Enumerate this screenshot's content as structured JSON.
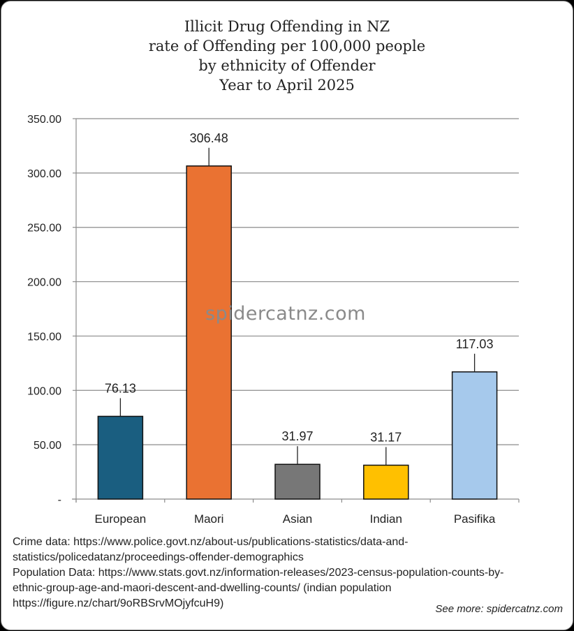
{
  "chart_data": {
    "type": "bar",
    "title": [
      "Illicit Drug Offending in NZ",
      "rate of Offending per 100,000 people",
      "by ethnicity of Offender",
      "Year to April 2025"
    ],
    "categories": [
      "European",
      "Maori",
      "Asian",
      "Indian",
      "Pasifika"
    ],
    "values": [
      76.13,
      306.48,
      31.97,
      31.17,
      117.03
    ],
    "value_labels": [
      "76.13",
      "306.48",
      "31.97",
      "31.17",
      "117.03"
    ],
    "bar_colors": [
      "#1a5e80",
      "#ea7232",
      "#777777",
      "#ffc000",
      "#a6c9ec"
    ],
    "ylim": [
      0,
      350
    ],
    "yticks": [
      0,
      50,
      100,
      150,
      200,
      250,
      300,
      350
    ],
    "ytick_labels": [
      "-",
      "50.00",
      "100.00",
      "150.00",
      "200.00",
      "250.00",
      "300.00",
      "350.00"
    ],
    "xlabel": "",
    "ylabel": "",
    "grid": true,
    "legend": "none"
  },
  "watermark": "spidercatnz.com",
  "source_lines": [
    "Crime data: https://www.police.govt.nz/about-us/publications-statistics/data-and-",
    "statistics/policedatanz/proceedings-offender-demographics",
    "Population Data: https://www.stats.govt.nz/information-releases/2023-census-population-counts-by-",
    "ethnic-group-age-and-maori-descent-and-dwelling-counts/ (indian population",
    "https://figure.nz/chart/9oRBSrvMOjyfcuH9)"
  ],
  "see_more": "See more: spidercatnz.com"
}
